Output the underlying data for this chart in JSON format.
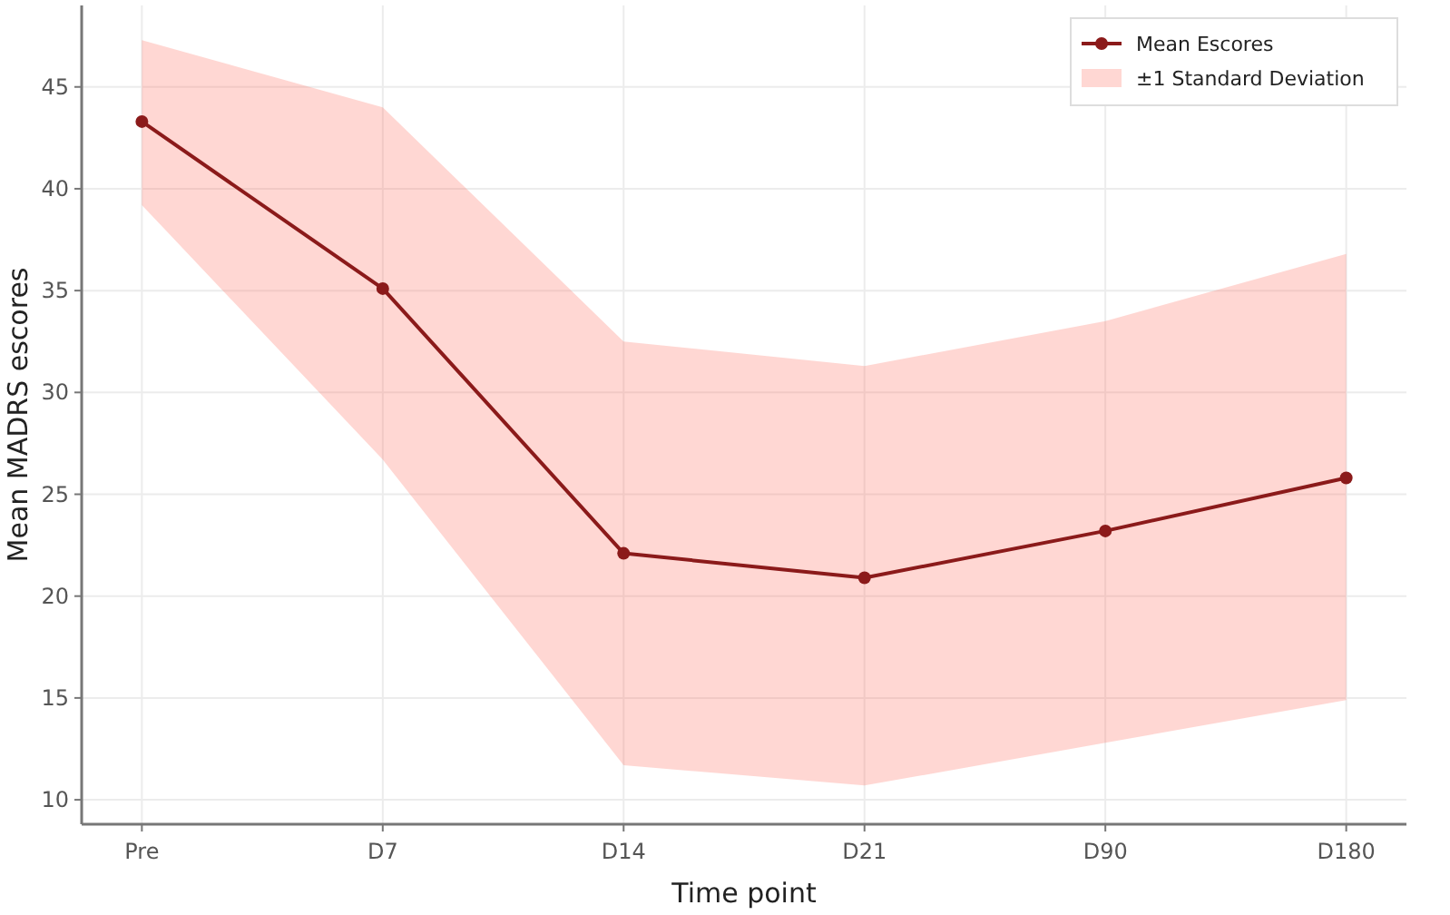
{
  "chart_data": {
    "type": "line",
    "xlabel": "Time point",
    "ylabel": "Mean MADRS escores",
    "categories": [
      "Pre",
      "D7",
      "D14",
      "D21",
      "D90",
      "D180"
    ],
    "annotations": [
      "±1 Standard Deviation"
    ],
    "ylim": [
      8.8,
      49
    ],
    "yticks": [
      10,
      15,
      20,
      25,
      30,
      35,
      40,
      45
    ],
    "grid": true,
    "legend": "top right",
    "marker": "circle",
    "line_style": "solid",
    "series": [
      {
        "name": "Mean Escores",
        "color": "#8b1a1a",
        "values": [
          43.3,
          35.1,
          22.1,
          20.9,
          23.2,
          25.8
        ],
        "lower": [
          39.2,
          26.7,
          11.7,
          10.7,
          12.8,
          14.9
        ],
        "upper": [
          47.3,
          44.0,
          32.5,
          31.3,
          33.5,
          36.8
        ]
      }
    ]
  }
}
